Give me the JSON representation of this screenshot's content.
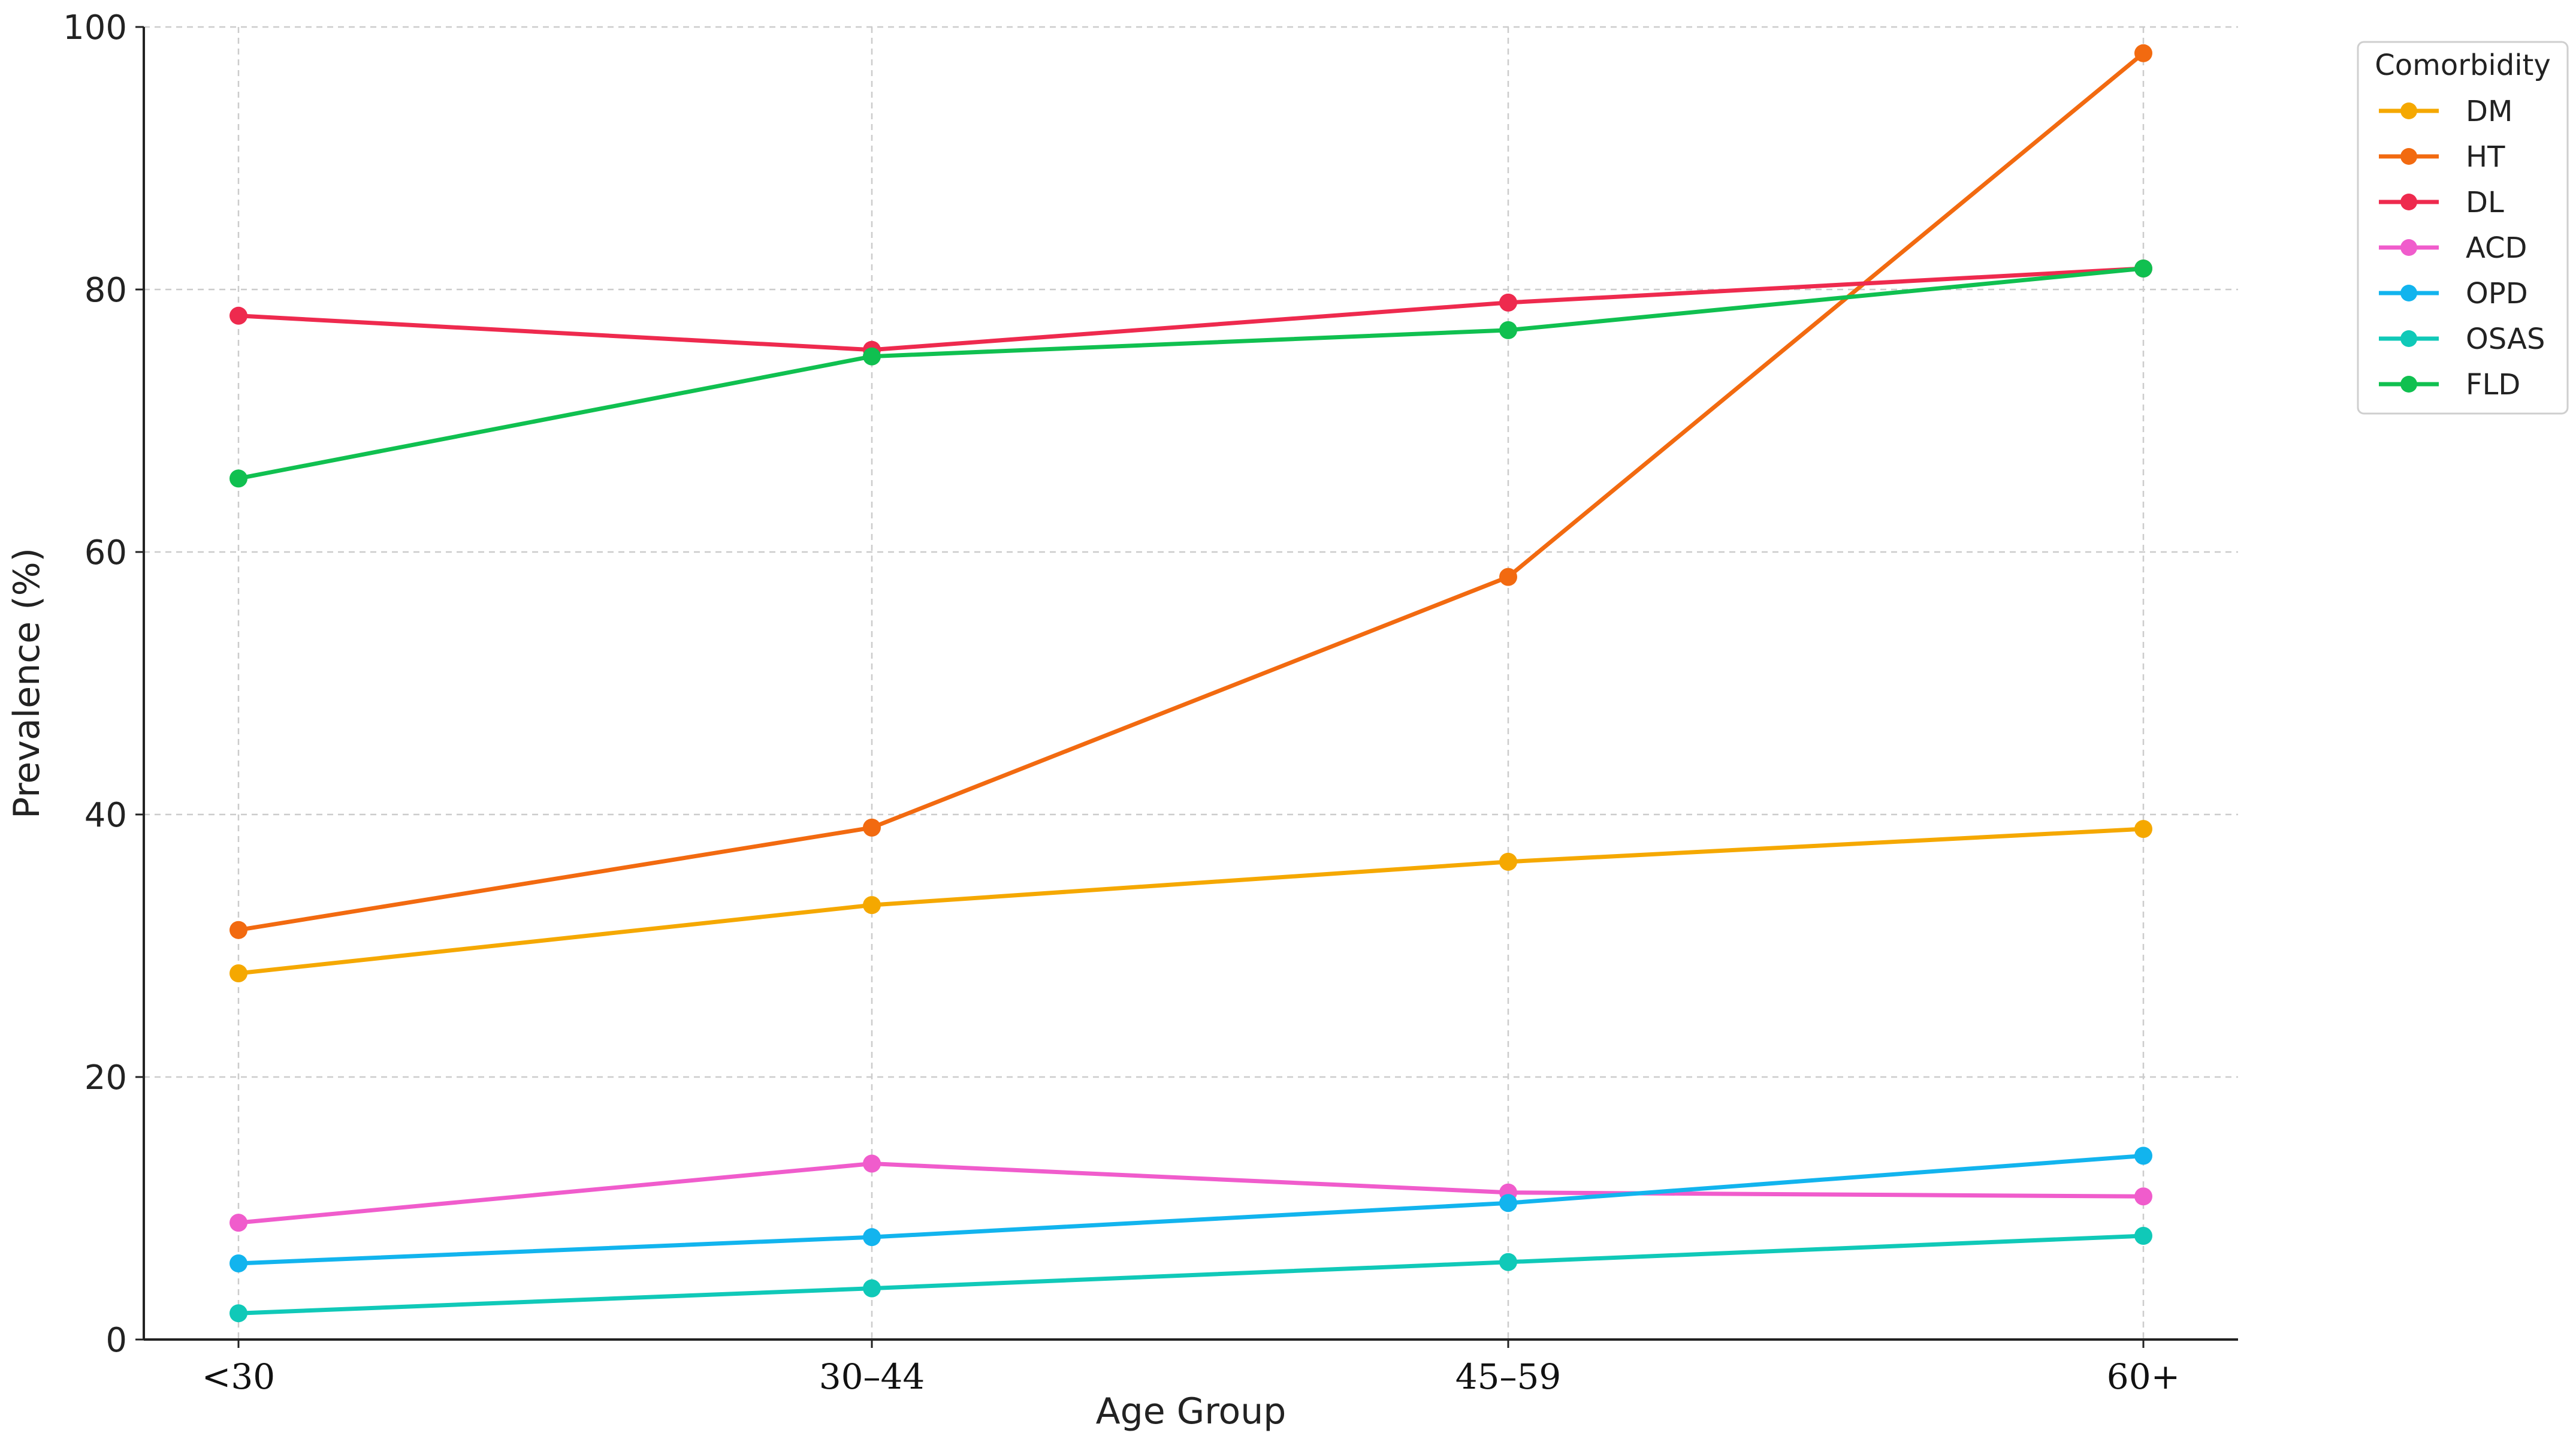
{
  "chart_data": {
    "type": "line",
    "title": "",
    "xlabel": "Age Group",
    "ylabel": "Prevalence (%)",
    "categories": [
      "<30",
      "30–44",
      "45–59",
      "60+"
    ],
    "ylim": [
      0,
      100
    ],
    "yticks": [
      0,
      20,
      40,
      60,
      80,
      100
    ],
    "grid": true,
    "legend": {
      "title": "Comorbidity",
      "placement": "outside-top-right"
    },
    "series": [
      {
        "name": "DM",
        "color": "#f5a800",
        "values": [
          27.9,
          33.1,
          36.4,
          38.9
        ]
      },
      {
        "name": "HT",
        "color": "#f26a10",
        "values": [
          31.2,
          39.0,
          58.1,
          98.0
        ]
      },
      {
        "name": "DL",
        "color": "#ee2a4e",
        "values": [
          78.0,
          75.4,
          79.0,
          81.6
        ]
      },
      {
        "name": "ACD",
        "color": "#f05ccc",
        "values": [
          8.9,
          13.4,
          11.2,
          10.9
        ]
      },
      {
        "name": "OPD",
        "color": "#12b4ee",
        "values": [
          5.8,
          7.8,
          10.4,
          14.0
        ]
      },
      {
        "name": "OSAS",
        "color": "#10c9b8",
        "values": [
          2.0,
          3.9,
          5.9,
          7.9
        ]
      },
      {
        "name": "FLD",
        "color": "#10c050",
        "values": [
          65.6,
          74.9,
          76.9,
          81.6
        ]
      }
    ]
  }
}
